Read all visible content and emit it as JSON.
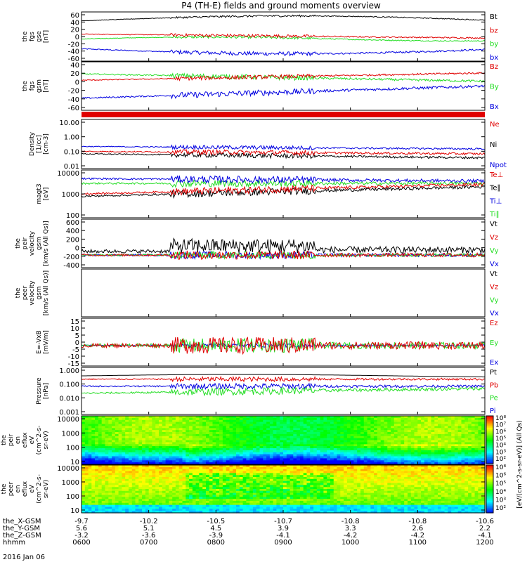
{
  "title": "P4 (TH-E) fields and ground moments overview",
  "date_label": "2016 Jan 06",
  "colors": {
    "black": "#000000",
    "red": "#e00000",
    "green": "#22dd22",
    "blue": "#0000e0"
  },
  "chart_data": {
    "type": "multi-panel time series",
    "time_ticks": [
      "0600",
      "0700",
      "0800",
      "0900",
      "1000",
      "1100",
      "1200"
    ],
    "orbit_rows": [
      {
        "label": "the_X-GSM",
        "values": [
          "-9.7",
          "-10.2",
          "-10.5",
          "-10.7",
          "-10.8",
          "-10.8",
          "-10.6"
        ]
      },
      {
        "label": "the_Y-GSM",
        "values": [
          "5.6",
          "5.1",
          "4.5",
          "3.9",
          "3.3",
          "2.6",
          "2.2"
        ]
      },
      {
        "label": "the_Z-GSM",
        "values": [
          "-3.2",
          "-3.6",
          "-3.9",
          "-4.1",
          "-4.2",
          "-4.2",
          "-4.1"
        ]
      },
      {
        "label": "hhmm",
        "values": [
          "0600",
          "0700",
          "0800",
          "0900",
          "1000",
          "1100",
          "1200"
        ]
      }
    ],
    "panels": [
      {
        "id": "fgs-gse",
        "ylabel": [
          "the",
          "fgs",
          "gse",
          "[nT]"
        ],
        "ticks": [
          "60",
          "40",
          "20",
          "0",
          "-20",
          "-40",
          "-60"
        ],
        "legend": [
          {
            "t": "Bt",
            "c": "black"
          },
          {
            "t": "bz",
            "c": "red"
          },
          {
            "t": "by",
            "c": "green"
          },
          {
            "t": "bx",
            "c": "blue"
          }
        ]
      },
      {
        "id": "fgs-gsm",
        "ylabel": [
          "the",
          "fgs",
          "gsm",
          "[nT]"
        ],
        "ticks": [
          "40",
          "20",
          "0",
          "-20",
          "-40",
          "-60"
        ],
        "legend": [
          {
            "t": "Bz",
            "c": "red"
          },
          {
            "t": "By",
            "c": "green"
          },
          {
            "t": "Bx",
            "c": "blue"
          }
        ]
      },
      {
        "id": "density",
        "ylabel": [
          "Density",
          "[1/cc]",
          "[cm-3]"
        ],
        "ticks": [
          "10.00",
          "1.00",
          "0.10",
          "0.01"
        ],
        "legend": [
          {
            "t": "Ne",
            "c": "red"
          },
          {
            "t": "Ni",
            "c": "black"
          },
          {
            "t": "Npot",
            "c": "blue"
          }
        ]
      },
      {
        "id": "temp",
        "ylabel": [
          "magt3",
          "[eV]"
        ],
        "ticks": [
          "10000",
          "1000",
          "100"
        ],
        "legend": [
          {
            "t": "Te⊥",
            "c": "red"
          },
          {
            "t": "Te∥",
            "c": "black"
          },
          {
            "t": "Ti⊥",
            "c": "blue"
          },
          {
            "t": "Ti∥",
            "c": "green"
          }
        ]
      },
      {
        "id": "peir-vel",
        "ylabel": [
          "the",
          "peir",
          "velocity",
          "gsm",
          "[km/s (All Qs)]"
        ],
        "ticks": [
          "600",
          "400",
          "200",
          "0",
          "-200",
          "-400"
        ],
        "legend": [
          {
            "t": "Vt",
            "c": "black"
          },
          {
            "t": "Vz",
            "c": "red"
          },
          {
            "t": "Vy",
            "c": "green"
          },
          {
            "t": "Vx",
            "c": "blue"
          }
        ]
      },
      {
        "id": "peer-vel",
        "ylabel": [
          "the",
          "peer",
          "velocity",
          "gsm",
          "[km/s (All Qs)]"
        ],
        "ticks": [],
        "legend": [
          {
            "t": "Vt",
            "c": "black"
          },
          {
            "t": "Vz",
            "c": "red"
          },
          {
            "t": "Vy",
            "c": "green"
          },
          {
            "t": "Vx",
            "c": "blue"
          }
        ]
      },
      {
        "id": "efield",
        "ylabel": [
          "E=-VxB",
          "[mV/m]"
        ],
        "ticks": [
          "15",
          "10",
          "5",
          "0",
          "-5",
          "-10",
          "-15"
        ],
        "legend": [
          {
            "t": "Ez",
            "c": "red"
          },
          {
            "t": "Ey",
            "c": "green"
          },
          {
            "t": "Ex",
            "c": "blue"
          }
        ]
      },
      {
        "id": "pressure",
        "ylabel": [
          "Pressure",
          "[nPa]"
        ],
        "ticks": [
          "1.000",
          "0.100",
          "0.010",
          "0.001"
        ],
        "legend": [
          {
            "t": "Pt",
            "c": "black"
          },
          {
            "t": "Pb",
            "c": "red"
          },
          {
            "t": "Pe",
            "c": "green"
          },
          {
            "t": "Pi",
            "c": "blue"
          }
        ]
      },
      {
        "id": "peir-eflux",
        "ylabel": [
          "the",
          "peir",
          "en",
          "eflux",
          "eV",
          "(cm^2-s-",
          "sr-eV)"
        ],
        "ticks": [
          "10000",
          "1000",
          "100",
          "10"
        ],
        "legend": []
      },
      {
        "id": "peer-eflux",
        "ylabel": [
          "the",
          "peer",
          "en",
          "eflux",
          "eV",
          "(cm^2-s-",
          "sr-eV)"
        ],
        "ticks": [
          "10000",
          "1000",
          "100",
          "10"
        ],
        "legend": []
      }
    ],
    "colorbar": {
      "label": "[eV/(cm^2-s-sr-eV)] (All Qs)",
      "upper_ticks": [
        "10⁸",
        "10⁷",
        "10⁶",
        "10⁵",
        "10⁴",
        "10³",
        "10²"
      ],
      "lower_ticks": [
        "10⁸",
        "10⁶",
        "10⁵",
        "10⁴",
        "10³",
        "10²"
      ]
    }
  }
}
